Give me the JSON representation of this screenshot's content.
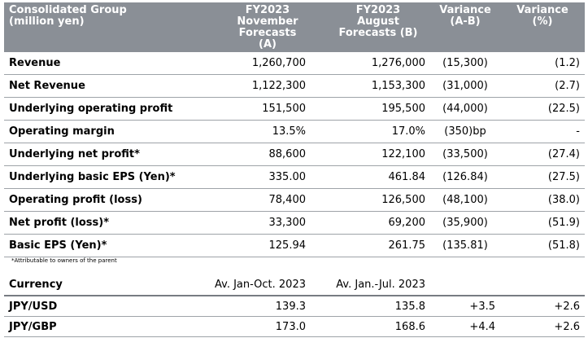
{
  "main_table": {
    "headers": [
      "Consolidated Group\n(million yen)",
      "FY2023\nNovember\nForecasts (A)",
      "FY2023\nAugust\nForecasts (B)",
      "Variance\n(A-B)",
      "Variance\n(%)"
    ],
    "rows": [
      {
        "label": "Revenue",
        "a": "1,260,700",
        "b": "1,276,000",
        "var": "(15,300)",
        "pct": "(1.2)"
      },
      {
        "label": "Net Revenue",
        "a": "1,122,300",
        "b": "1,153,300",
        "var": "(31,000)",
        "pct": "(2.7)"
      },
      {
        "label": "Underlying operating profit",
        "a": "151,500",
        "b": "195,500",
        "var": "(44,000)",
        "pct": "(22.5)"
      },
      {
        "label": "Operating margin",
        "a": "13.5%",
        "b": "17.0%",
        "var": "(350)bp",
        "pct": "-"
      },
      {
        "label": "Underlying net profit*",
        "a": "88,600",
        "b": "122,100",
        "var": "(33,500)",
        "pct": "(27.4)"
      },
      {
        "label": "Underlying basic EPS (Yen)*",
        "a": "335.00",
        "b": "461.84",
        "var": "(126.84)",
        "pct": "(27.5)"
      },
      {
        "label": "Operating profit (loss)",
        "a": "78,400",
        "b": "126,500",
        "var": "(48,100)",
        "pct": "(38.0)"
      },
      {
        "label": "Net profit (loss)*",
        "a": "33,300",
        "b": "69,200",
        "var": "(35,900)",
        "pct": "(51.9)"
      },
      {
        "label": "Basic EPS (Yen)*",
        "a": "125.94",
        "b": "261.75",
        "var": "(135.81)",
        "pct": "(51.8)"
      }
    ]
  },
  "footnote": "*Attributable to owners of the parent",
  "currency_table": {
    "header": {
      "label": "Currency",
      "a": "Av. Jan-Oct. 2023",
      "b": "Av. Jan.-Jul. 2023",
      "var": "",
      "pct": ""
    },
    "rows": [
      {
        "label": "JPY/USD",
        "a": "139.3",
        "b": "135.8",
        "var": "+3.5",
        "pct": "+2.6"
      },
      {
        "label": "JPY/GBP",
        "a": "173.0",
        "b": "168.6",
        "var": "+4.4",
        "pct": "+2.6"
      }
    ]
  },
  "colors": {
    "header_bg": "#8a8f96",
    "header_text": "#ffffff",
    "row_rule": "#9ea3a8"
  }
}
